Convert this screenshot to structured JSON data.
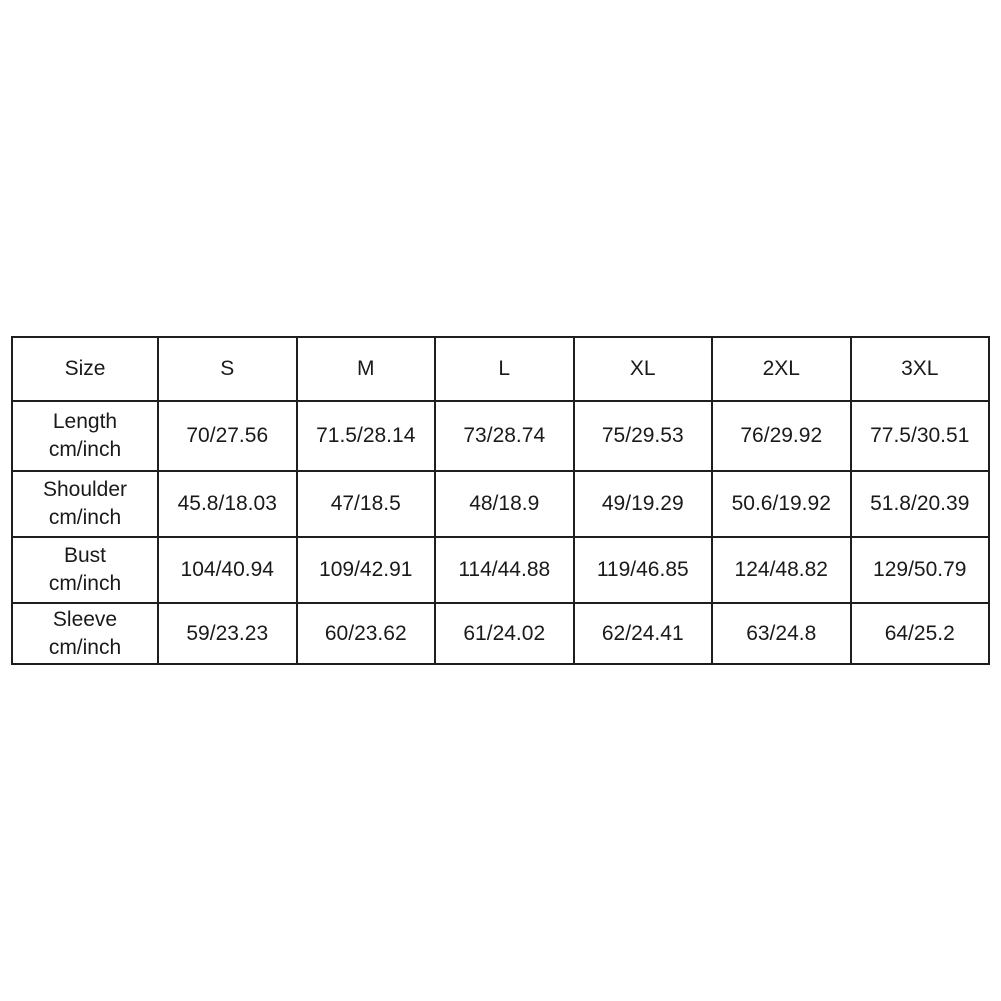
{
  "colors": {
    "background": "#ffffff",
    "border": "#1e1e1e",
    "text": "#1a1a1a"
  },
  "chart_data": {
    "type": "table",
    "title": "",
    "columns": [
      "Size",
      "S",
      "M",
      "L",
      "XL",
      "2XL",
      "3XL"
    ],
    "unit_note": "cm/inch",
    "rows": [
      {
        "label": "Length",
        "unit": "cm/inch",
        "values": [
          "70/27.56",
          "71.5/28.14",
          "73/28.74",
          "75/29.53",
          "76/29.92",
          "77.5/30.51"
        ]
      },
      {
        "label": "Shoulder",
        "unit": "cm/inch",
        "values": [
          "45.8/18.03",
          "47/18.5",
          "48/18.9",
          "49/19.29",
          "50.6/19.92",
          "51.8/20.39"
        ]
      },
      {
        "label": "Bust",
        "unit": "cm/inch",
        "values": [
          "104/40.94",
          "109/42.91",
          "114/44.88",
          "119/46.85",
          "124/48.82",
          "129/50.79"
        ]
      },
      {
        "label": "Sleeve",
        "unit": "cm/inch",
        "values": [
          "59/23.23",
          "60/23.62",
          "61/24.02",
          "62/24.41",
          "63/24.8",
          "64/25.2"
        ]
      }
    ]
  }
}
